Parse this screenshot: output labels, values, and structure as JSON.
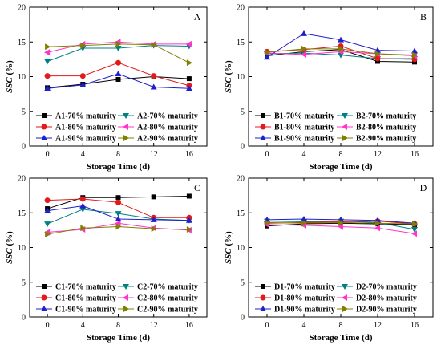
{
  "shared": {
    "xlabel": "Storage Time (d)",
    "ylabel_italic": "SSC",
    "ylabel_unit": " (%)"
  },
  "chart_data": [
    {
      "type": "line",
      "panel": "A",
      "x": [
        0,
        4,
        8,
        12,
        16
      ],
      "xlim": [
        -2,
        18
      ],
      "ylim": [
        0,
        20
      ],
      "xticks": [
        0,
        4,
        8,
        12,
        16
      ],
      "yticks": [
        0,
        5,
        10,
        15,
        20
      ],
      "series": [
        {
          "name": "A1-70% maturity",
          "color": "#000000",
          "marker": "square",
          "dash": "solid",
          "values": [
            8.4,
            8.9,
            9.6,
            10.0,
            9.7
          ]
        },
        {
          "name": "A2-70% maturity",
          "color": "#008080",
          "marker": "tri-down",
          "dash": "solid",
          "values": [
            12.2,
            14.1,
            14.1,
            14.5,
            14.4
          ]
        },
        {
          "name": "A1-80% maturity",
          "color": "#e31a1c",
          "marker": "circle",
          "dash": "solid",
          "values": [
            10.1,
            10.1,
            12.0,
            10.1,
            8.7
          ]
        },
        {
          "name": "A2-80% maturity",
          "color": "#ff33cc",
          "marker": "tri-left",
          "dash": "solid",
          "values": [
            13.5,
            14.7,
            15.0,
            14.7,
            14.7
          ]
        },
        {
          "name": "A1-90% maturity",
          "color": "#1f1fcc",
          "marker": "tri-up",
          "dash": "solid",
          "values": [
            8.3,
            8.8,
            10.4,
            8.5,
            8.3
          ]
        },
        {
          "name": "A2-90% maturity",
          "color": "#808000",
          "marker": "tri-right",
          "dash": "solid",
          "values": [
            14.3,
            14.5,
            14.7,
            14.6,
            12.0
          ]
        }
      ]
    },
    {
      "type": "line",
      "panel": "B",
      "x": [
        0,
        4,
        8,
        12,
        16
      ],
      "xlim": [
        -2,
        18
      ],
      "ylim": [
        0,
        20
      ],
      "xticks": [
        0,
        4,
        8,
        12,
        16
      ],
      "yticks": [
        0,
        5,
        10,
        15,
        20
      ],
      "series": [
        {
          "name": "B1-70% maturity",
          "color": "#000000",
          "marker": "square",
          "dash": "solid",
          "values": [
            13.0,
            13.6,
            13.9,
            12.2,
            12.1
          ]
        },
        {
          "name": "B2-70% maturity",
          "color": "#008080",
          "marker": "tri-down",
          "dash": "solid",
          "values": [
            13.3,
            13.4,
            13.1,
            12.6,
            12.6
          ]
        },
        {
          "name": "B1-80% maturity",
          "color": "#e31a1c",
          "marker": "circle",
          "dash": "solid",
          "values": [
            13.6,
            13.9,
            14.4,
            12.6,
            12.5
          ]
        },
        {
          "name": "B2-80% maturity",
          "color": "#ff33cc",
          "marker": "tri-left",
          "dash": "solid",
          "values": [
            13.4,
            13.2,
            13.6,
            13.3,
            13.0
          ]
        },
        {
          "name": "B1-90% maturity",
          "color": "#1f1fcc",
          "marker": "tri-up",
          "dash": "solid",
          "values": [
            12.8,
            16.2,
            15.3,
            13.8,
            13.7
          ]
        },
        {
          "name": "B2-90% maturity",
          "color": "#808000",
          "marker": "tri-right",
          "dash": "solid",
          "values": [
            13.5,
            14.0,
            14.0,
            13.3,
            13.1
          ]
        }
      ]
    },
    {
      "type": "line",
      "panel": "C",
      "x": [
        0,
        4,
        8,
        12,
        16
      ],
      "xlim": [
        -2,
        18
      ],
      "ylim": [
        0,
        20
      ],
      "xticks": [
        0,
        4,
        8,
        12,
        16
      ],
      "yticks": [
        0,
        5,
        10,
        15,
        20
      ],
      "series": [
        {
          "name": "C1-70% maturity",
          "color": "#000000",
          "marker": "square",
          "dash": "solid",
          "values": [
            15.6,
            17.2,
            17.2,
            17.3,
            17.4
          ]
        },
        {
          "name": "C2-70% maturity",
          "color": "#008080",
          "marker": "tri-down",
          "dash": "solid",
          "values": [
            13.4,
            15.5,
            14.9,
            14.1,
            13.9
          ]
        },
        {
          "name": "C1-80% maturity",
          "color": "#e31a1c",
          "marker": "circle",
          "dash": "solid",
          "values": [
            16.8,
            17.0,
            16.5,
            14.3,
            14.3
          ]
        },
        {
          "name": "C2-80% maturity",
          "color": "#ff33cc",
          "marker": "tri-left",
          "dash": "solid",
          "values": [
            12.2,
            12.6,
            13.5,
            12.8,
            12.5
          ]
        },
        {
          "name": "C1-90% maturity",
          "color": "#1f1fcc",
          "marker": "tri-up",
          "dash": "solid",
          "values": [
            15.3,
            16.0,
            14.1,
            14.0,
            13.9
          ]
        },
        {
          "name": "C2-90% maturity",
          "color": "#808000",
          "marker": "tri-right",
          "dash": "solid",
          "values": [
            11.9,
            12.8,
            13.0,
            12.7,
            12.6
          ]
        }
      ]
    },
    {
      "type": "line",
      "panel": "D",
      "x": [
        0,
        4,
        8,
        12,
        16
      ],
      "xlim": [
        -2,
        18
      ],
      "ylim": [
        0,
        20
      ],
      "xticks": [
        0,
        4,
        8,
        12,
        16
      ],
      "yticks": [
        0,
        5,
        10,
        15,
        20
      ],
      "series": [
        {
          "name": "D1-70% maturity",
          "color": "#000000",
          "marker": "square",
          "dash": "solid",
          "values": [
            13.1,
            13.4,
            13.5,
            13.4,
            13.3
          ]
        },
        {
          "name": "D2-70% maturity",
          "color": "#008080",
          "marker": "tri-down",
          "dash": "solid",
          "values": [
            13.8,
            13.7,
            13.8,
            13.6,
            12.6
          ]
        },
        {
          "name": "D1-80% maturity",
          "color": "#e31a1c",
          "marker": "circle",
          "dash": "solid",
          "values": [
            13.5,
            13.6,
            13.7,
            13.8,
            13.4
          ]
        },
        {
          "name": "D2-80% maturity",
          "color": "#ff33cc",
          "marker": "tri-left",
          "dash": "solid",
          "values": [
            13.3,
            13.2,
            13.0,
            12.8,
            12.0
          ]
        },
        {
          "name": "D1-90% maturity",
          "color": "#1f1fcc",
          "marker": "tri-up",
          "dash": "solid",
          "values": [
            14.0,
            14.1,
            14.0,
            13.9,
            13.5
          ]
        },
        {
          "name": "D2-90% maturity",
          "color": "#808000",
          "marker": "tri-right",
          "dash": "solid",
          "values": [
            13.6,
            13.5,
            13.6,
            13.5,
            13.4
          ]
        }
      ]
    }
  ]
}
